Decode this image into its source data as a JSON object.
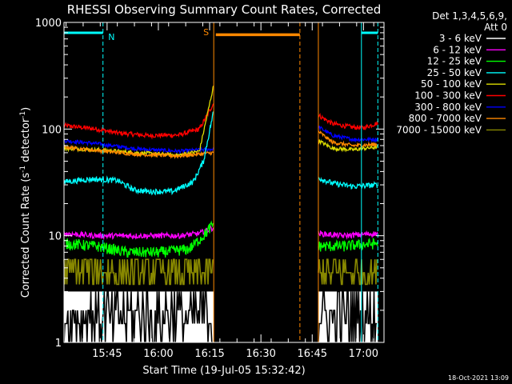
{
  "chart_data": {
    "type": "line",
    "title": "RHESSI Observing Summary Count Rates, Corrected",
    "xlabel": "Start Time (19-Jul-05 15:32:42)",
    "ylabel_main": "Corrected Count Rate (s",
    "ylabel_sup1": "-1",
    "ylabel_mid": " detector",
    "ylabel_sup2": "-1",
    "ylabel_end": ")",
    "y_scale": "log",
    "ylim": [
      1,
      1000
    ],
    "xlim": [
      15.54,
      17.1
    ],
    "x_ticks": [
      {
        "label": "15:45",
        "value": 15.75
      },
      {
        "label": "16:00",
        "value": 16.0
      },
      {
        "label": "16:15",
        "value": 16.25
      },
      {
        "label": "16:30",
        "value": 16.5
      },
      {
        "label": "16:45",
        "value": 16.75
      },
      {
        "label": "17:00",
        "value": 17.0
      }
    ],
    "y_ticks": [
      {
        "label": "1",
        "value": 1
      },
      {
        "label": "10",
        "value": 10
      },
      {
        "label": "100",
        "value": 100
      },
      {
        "label": "1000",
        "value": 1000
      }
    ],
    "legend": {
      "placement": "right",
      "header1": "Det 1,3,4,5,6,9,",
      "header2": "Att 0",
      "entries": [
        {
          "label": "3 - 6 keV",
          "color": "#000000"
        },
        {
          "label": "6 - 12 keV",
          "color": "#ff00ff"
        },
        {
          "label": "12 - 25 keV",
          "color": "#00ff00"
        },
        {
          "label": "25 - 50 keV",
          "color": "#00ffff"
        },
        {
          "label": "50 - 100 keV",
          "color": "#dddd00"
        },
        {
          "label": "100 - 300 keV",
          "color": "#ff0000"
        },
        {
          "label": "300 - 800 keV",
          "color": "#0000ff"
        },
        {
          "label": "800 - 7000 keV",
          "color": "#ff8800"
        },
        {
          "label": "7000 - 15000 keV",
          "color": "#888800"
        }
      ]
    },
    "annotations": [
      {
        "label": "N",
        "color": "#00ffff"
      },
      {
        "label": "S",
        "color": "#ff8800"
      }
    ],
    "segments": [
      [
        15.54,
        16.27
      ],
      [
        16.78,
        17.07
      ]
    ],
    "night_bars": [
      [
        15.54,
        15.73
      ],
      [
        16.99,
        17.07
      ]
    ],
    "saa_bar": [
      16.28,
      16.69
    ],
    "markers": [
      {
        "x": 15.54,
        "color": "#00ffff",
        "dash": false
      },
      {
        "x": 15.73,
        "color": "#00ffff",
        "dash": true
      },
      {
        "x": 16.27,
        "color": "#ff8800",
        "dash": false
      },
      {
        "x": 16.69,
        "color": "#ff8800",
        "dash": true
      },
      {
        "x": 16.78,
        "color": "#ff8800",
        "dash": false
      },
      {
        "x": 16.99,
        "color": "#00ffff",
        "dash": false
      },
      {
        "x": 17.07,
        "color": "#00ffff",
        "dash": true
      }
    ],
    "series": [
      {
        "name": "100 - 300 keV",
        "color": "#ff0000",
        "noise": 0.05,
        "seg1": [
          [
            15.54,
            108
          ],
          [
            15.7,
            100
          ],
          [
            15.8,
            92
          ],
          [
            15.95,
            87
          ],
          [
            16.1,
            88
          ],
          [
            16.2,
            100
          ],
          [
            16.27,
            175
          ]
        ],
        "seg2": [
          [
            16.78,
            135
          ],
          [
            16.85,
            112
          ],
          [
            16.95,
            104
          ],
          [
            17.0,
            103
          ],
          [
            17.07,
            114
          ]
        ]
      },
      {
        "name": "300 - 800 keV",
        "color": "#0000ff",
        "noise": 0.04,
        "seg1": [
          [
            15.54,
            78
          ],
          [
            15.7,
            73
          ],
          [
            15.9,
            65
          ],
          [
            16.1,
            62
          ],
          [
            16.27,
            65
          ]
        ],
        "seg2": [
          [
            16.78,
            105
          ],
          [
            16.85,
            87
          ],
          [
            16.95,
            80
          ],
          [
            17.07,
            80
          ]
        ]
      },
      {
        "name": "50 - 100 keV",
        "color": "#dddd00",
        "noise": 0.04,
        "seg1": [
          [
            15.54,
            66
          ],
          [
            15.7,
            64
          ],
          [
            15.9,
            60
          ],
          [
            16.1,
            57
          ],
          [
            16.2,
            62
          ],
          [
            16.27,
            260
          ]
        ],
        "seg2": [
          [
            16.78,
            78
          ],
          [
            16.85,
            66
          ],
          [
            16.95,
            64
          ],
          [
            17.07,
            68
          ]
        ]
      },
      {
        "name": "800 - 7000 keV",
        "color": "#ff8800",
        "noise": 0.04,
        "seg1": [
          [
            15.54,
            68
          ],
          [
            15.7,
            63
          ],
          [
            15.9,
            58
          ],
          [
            16.1,
            56
          ],
          [
            16.27,
            60
          ]
        ],
        "seg2": [
          [
            16.78,
            95
          ],
          [
            16.85,
            75
          ],
          [
            16.95,
            70
          ],
          [
            17.07,
            72
          ]
        ]
      },
      {
        "name": "25 - 50 keV",
        "color": "#00ffff",
        "noise": 0.06,
        "seg1": [
          [
            15.54,
            32
          ],
          [
            15.68,
            34
          ],
          [
            15.8,
            33
          ],
          [
            15.88,
            27
          ],
          [
            15.95,
            26
          ],
          [
            16.07,
            26
          ],
          [
            16.17,
            32
          ],
          [
            16.22,
            50
          ],
          [
            16.27,
            150
          ]
        ],
        "seg2": [
          [
            16.78,
            35
          ],
          [
            16.85,
            31
          ],
          [
            16.95,
            29
          ],
          [
            17.07,
            30
          ]
        ]
      },
      {
        "name": "6 - 12 keV",
        "color": "#ff00ff",
        "noise": 0.06,
        "seg1": [
          [
            15.54,
            10.5
          ],
          [
            15.7,
            10
          ],
          [
            15.9,
            10
          ],
          [
            16.1,
            10
          ],
          [
            16.2,
            10.5
          ],
          [
            16.27,
            12
          ]
        ],
        "seg2": [
          [
            16.78,
            10.5
          ],
          [
            16.9,
            10
          ],
          [
            17.07,
            10.5
          ]
        ]
      },
      {
        "name": "12 - 25 keV",
        "color": "#00ff00",
        "noise": 0.12,
        "seg1": [
          [
            15.54,
            8.5
          ],
          [
            15.7,
            8
          ],
          [
            15.85,
            7
          ],
          [
            16.0,
            7
          ],
          [
            16.15,
            7.5
          ],
          [
            16.22,
            10
          ],
          [
            16.27,
            13
          ]
        ],
        "seg2": [
          [
            16.78,
            8
          ],
          [
            16.9,
            8
          ],
          [
            17.07,
            8.5
          ]
        ]
      },
      {
        "name": "7000 - 15000 keV",
        "color": "#888800",
        "noise": 0.0,
        "step": [
          3.5,
          4.5,
          6
        ],
        "seg1": [
          [
            15.54,
            4
          ],
          [
            16.27,
            4
          ]
        ],
        "seg2": [
          [
            16.78,
            4
          ],
          [
            17.07,
            4
          ]
        ]
      },
      {
        "name": "3 - 6 keV",
        "color": "#000000",
        "noise": 0.0,
        "step": [
          1,
          1.5,
          2,
          3
        ],
        "seg1": [
          [
            15.54,
            2
          ],
          [
            16.27,
            2
          ]
        ],
        "seg2": [
          [
            16.78,
            2
          ],
          [
            17.07,
            2
          ]
        ]
      }
    ]
  },
  "timestamp": "18-Oct-2021 13:09"
}
